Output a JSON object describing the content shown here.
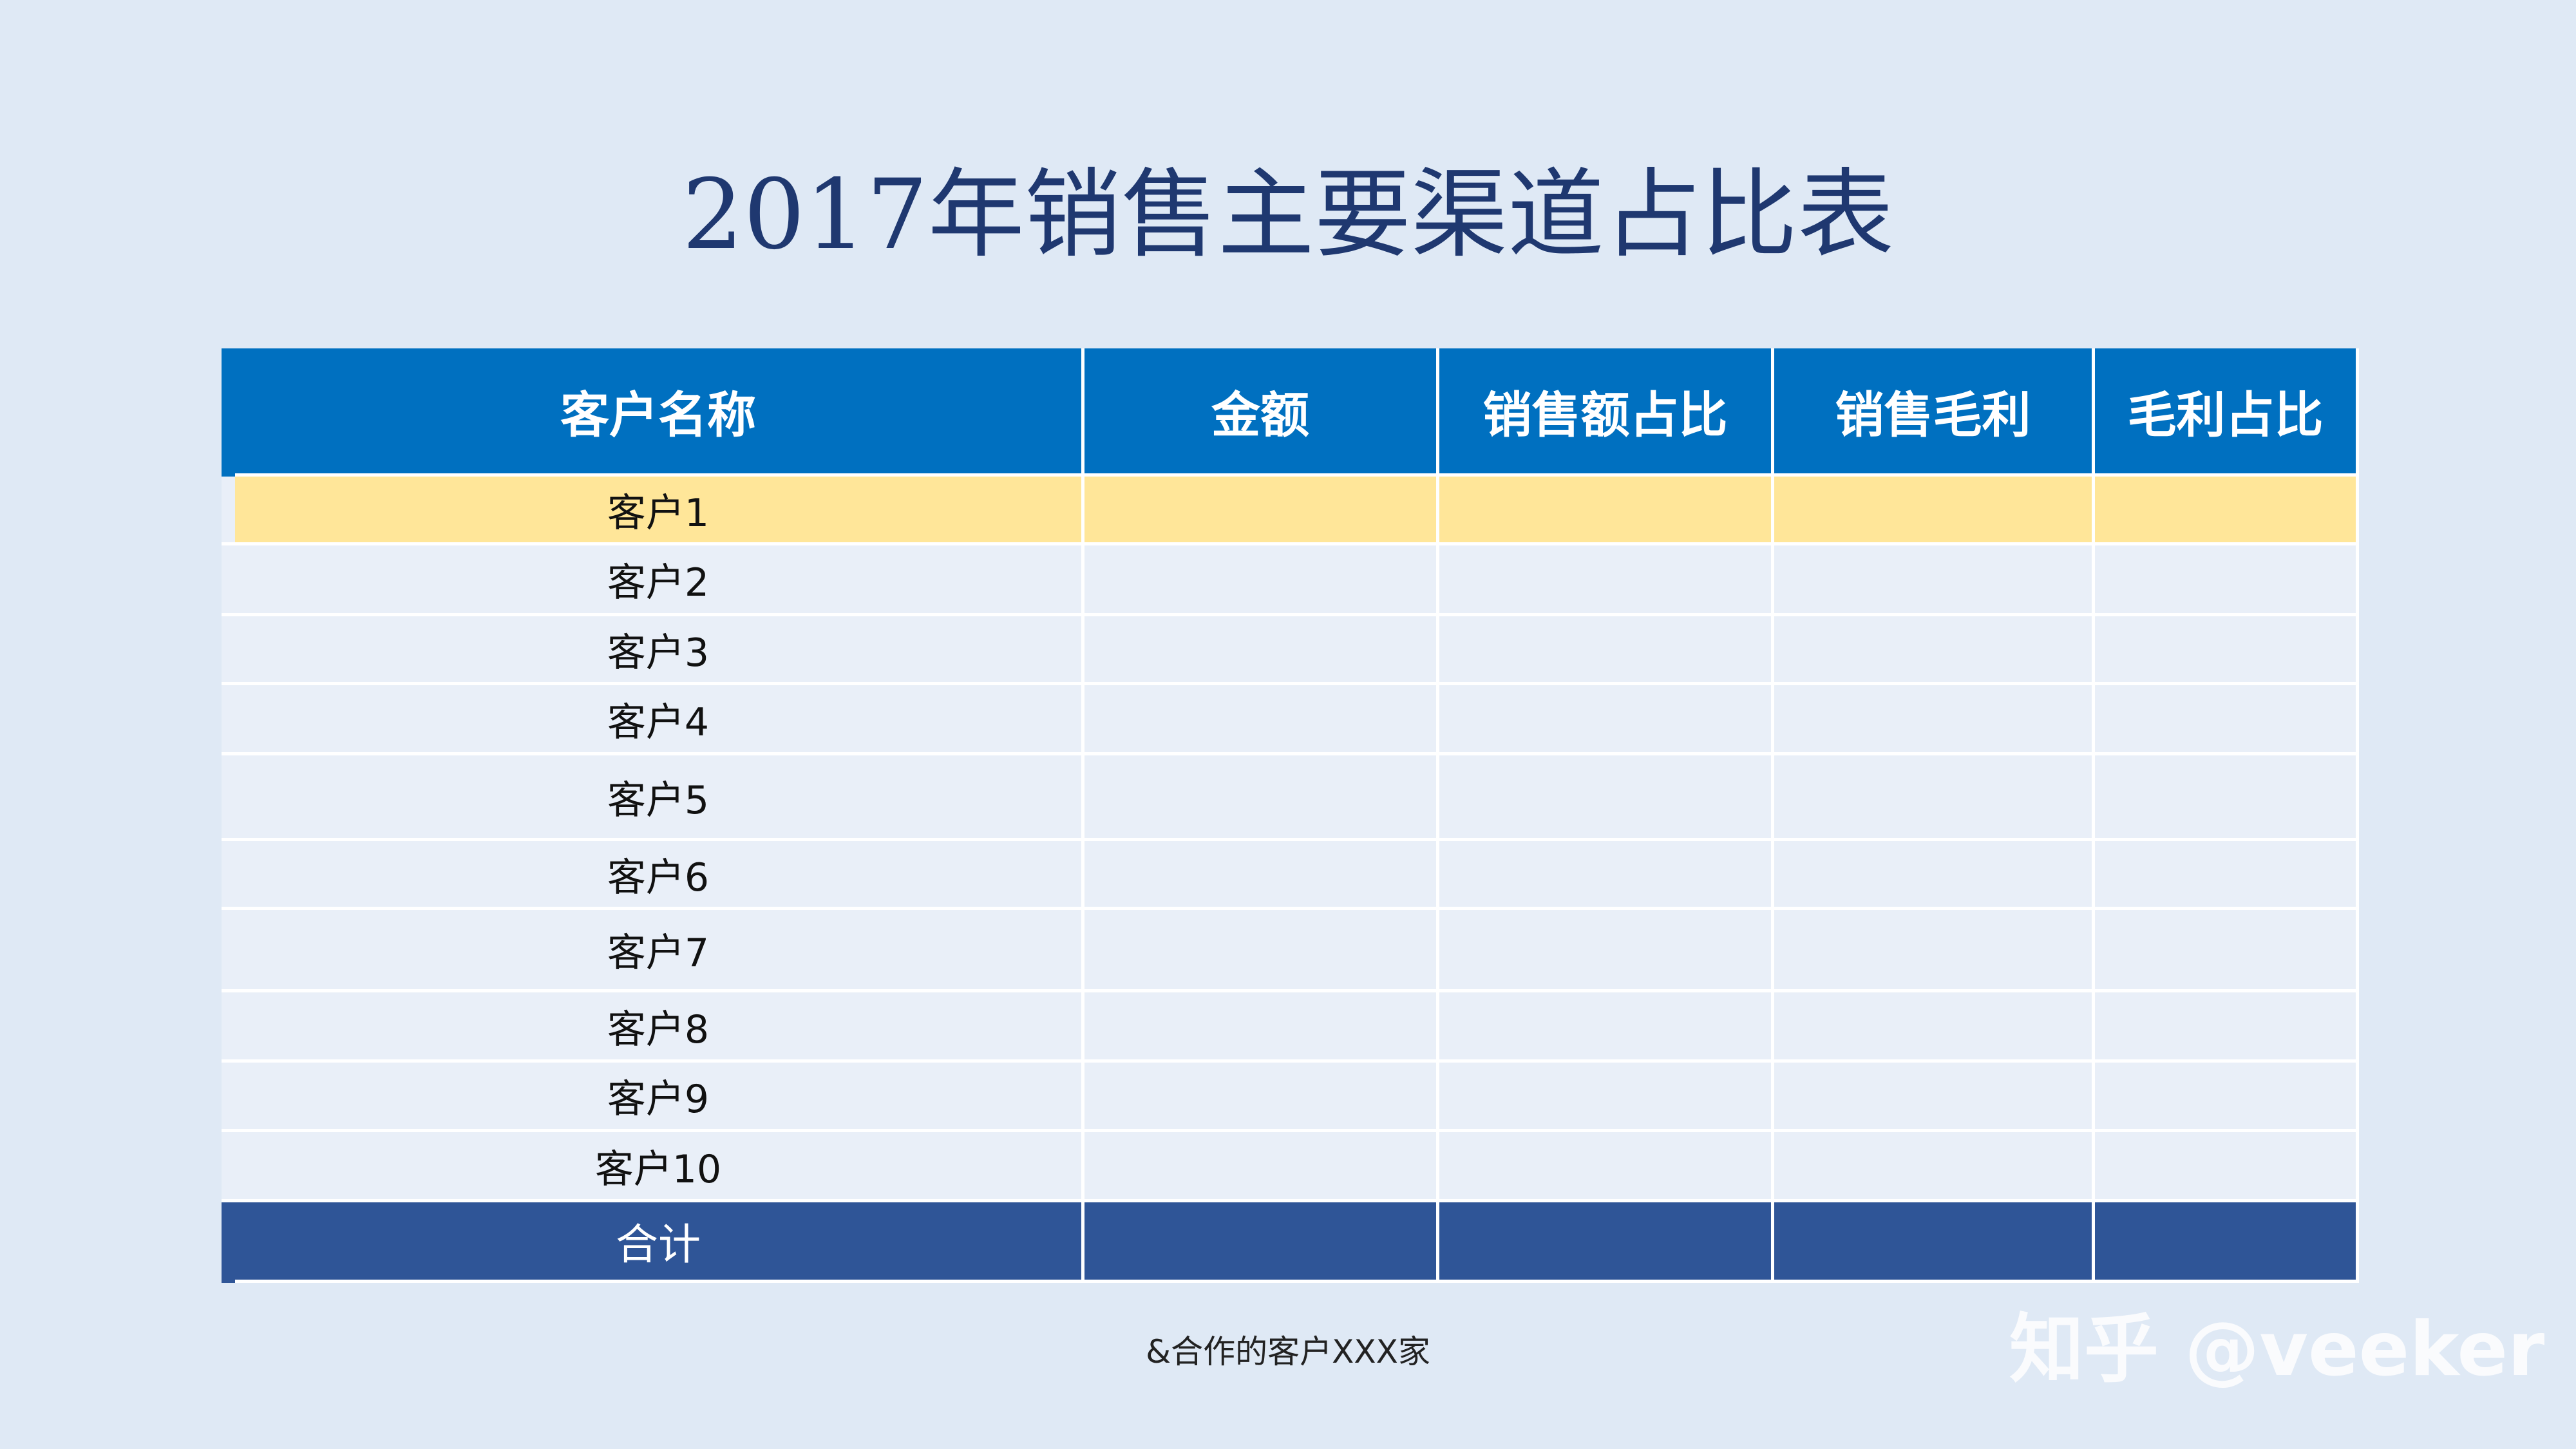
{
  "title": "2017年销售主要渠道占比表",
  "table": {
    "header": [
      "客户名称",
      "金额",
      "销售额占比",
      "销售毛利",
      "毛利占比"
    ],
    "rows": [
      "客户1",
      "客户2",
      "客户3",
      "客户4",
      "客户5",
      "客户6",
      "客户7",
      "客户8",
      "客户9",
      "客户10"
    ],
    "total": "合计"
  },
  "note": "&合作的客户XXX家",
  "watermark": "知乎 @veeker"
}
